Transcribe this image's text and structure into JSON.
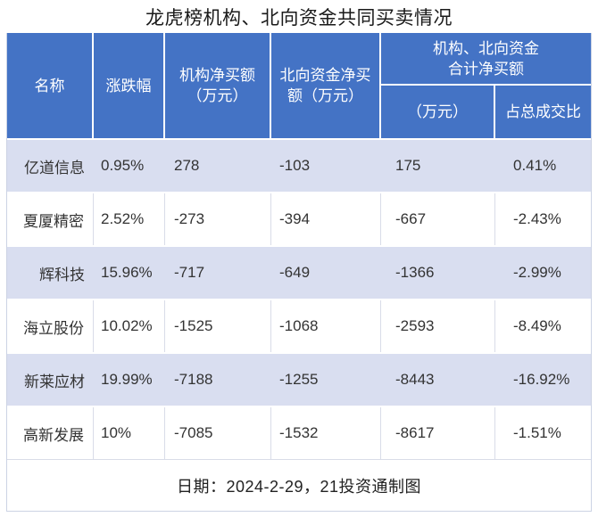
{
  "title": "龙虎榜机构、北向资金共同买卖情况",
  "colors": {
    "header_bg": "#4473c5",
    "header_text": "#ffffff",
    "row_shaded_bg": "#d9def0",
    "grid_line": "#d9dce8",
    "body_text": "#333333"
  },
  "table": {
    "headers": {
      "name": "名称",
      "change": "涨跌幅",
      "inst_net_buy": "机构净买额\n（万元）",
      "north_net_buy": "北向资金净买\n额（万元）",
      "combined_group": "机构、北向资金\n合计净买额",
      "combined_amount": "（万元）",
      "combined_ratio": "占总成交比"
    },
    "rows": [
      {
        "name": "亿道信息",
        "change": "0.95%",
        "inst_net_buy": "278",
        "north_net_buy": "-103",
        "combined_amount": "175",
        "combined_ratio": "0.41%"
      },
      {
        "name": "夏厦精密",
        "change": "2.52%",
        "inst_net_buy": "-273",
        "north_net_buy": "-394",
        "combined_amount": "-667",
        "combined_ratio": "-2.43%"
      },
      {
        "name": "辉科技",
        "change": "15.96%",
        "inst_net_buy": "-717",
        "north_net_buy": "-649",
        "combined_amount": "-1366",
        "combined_ratio": "-2.99%"
      },
      {
        "name": "海立股份",
        "change": "10.02%",
        "inst_net_buy": "-1525",
        "north_net_buy": "-1068",
        "combined_amount": "-2593",
        "combined_ratio": "-8.49%"
      },
      {
        "name": "新莱应材",
        "change": "19.99%",
        "inst_net_buy": "-7188",
        "north_net_buy": "-1255",
        "combined_amount": "-8443",
        "combined_ratio": "-16.92%"
      },
      {
        "name": "高新发展",
        "change": "10%",
        "inst_net_buy": "-7085",
        "north_net_buy": "-1532",
        "combined_amount": "-8617",
        "combined_ratio": "-1.51%"
      }
    ]
  },
  "footer": {
    "note": "日期：2024-2-29，21投资通制图"
  },
  "chart_data": {
    "type": "table",
    "title": "龙虎榜机构、北向资金共同买卖情况",
    "columns": [
      "名称",
      "涨跌幅",
      "机构净买额（万元）",
      "北向资金净买额（万元）",
      "机构、北向资金合计净买额（万元）",
      "机构、北向资金合计净买额占总成交比"
    ],
    "rows": [
      [
        "亿道信息",
        "0.95%",
        278,
        -103,
        175,
        "0.41%"
      ],
      [
        "夏厦精密",
        "2.52%",
        -273,
        -394,
        -667,
        "-2.43%"
      ],
      [
        "辉科技",
        "15.96%",
        -717,
        -649,
        -1366,
        "-2.99%"
      ],
      [
        "海立股份",
        "10.02%",
        -1525,
        -1068,
        -2593,
        "-8.49%"
      ],
      [
        "新莱应材",
        "19.99%",
        -7188,
        -1255,
        -8443,
        "-16.92%"
      ],
      [
        "高新发展",
        "10%",
        -7085,
        -1532,
        -8617,
        "-1.51%"
      ]
    ],
    "note": "日期：2024-2-29，21投资通制图",
    "layout": {
      "header_rows": 2,
      "shaded_row_indices": [
        0,
        2,
        4
      ],
      "legend_position": "none",
      "grid": "partial"
    }
  }
}
